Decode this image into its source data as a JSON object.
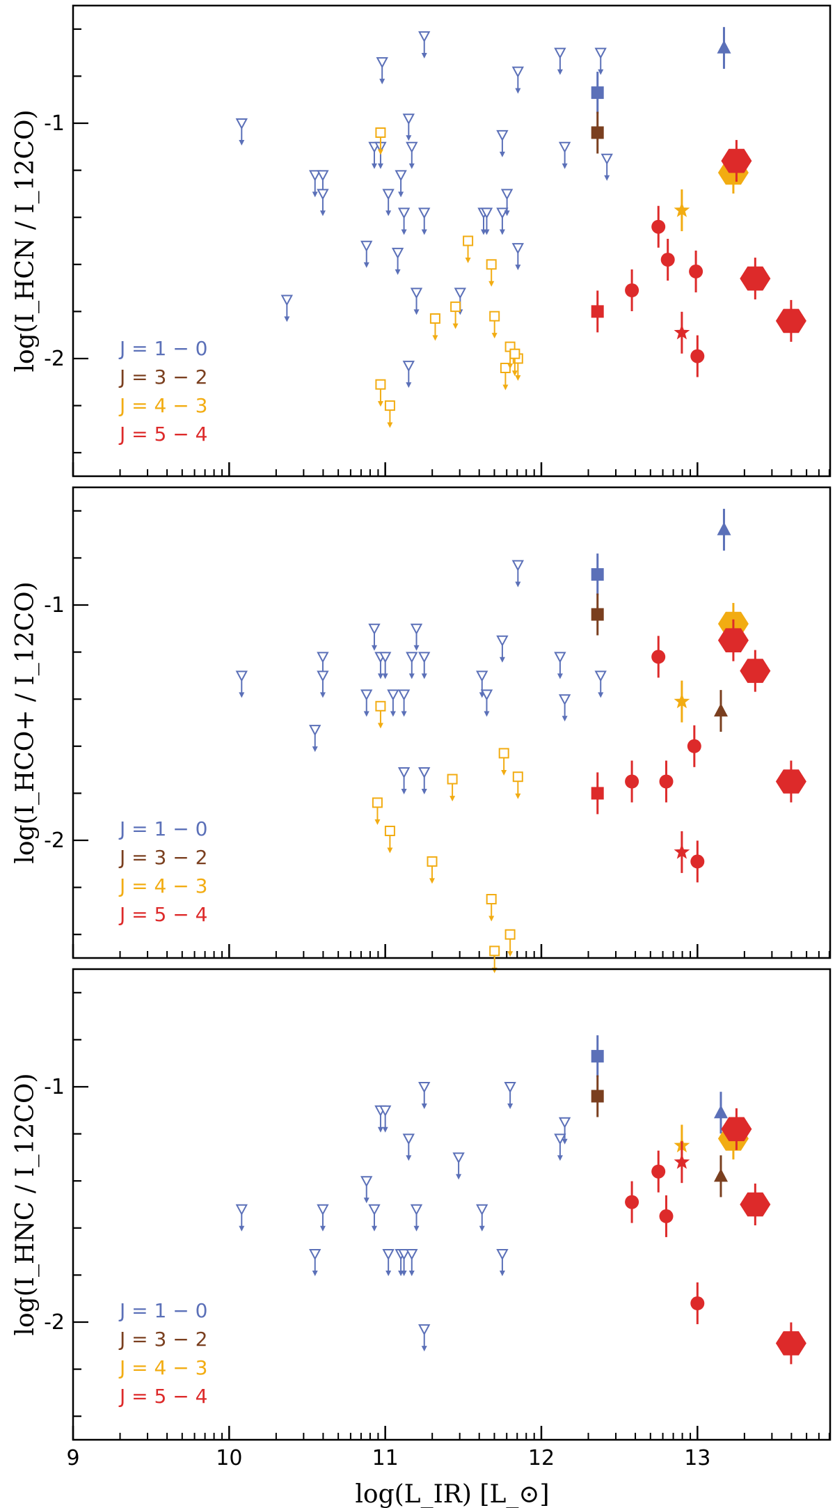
{
  "chart_data": {
    "type": "scatter",
    "xlabel": "log(L_IR) [L_⊙]",
    "xlim": [
      9,
      13.85
    ],
    "xticks": [
      "9",
      "10",
      "11",
      "12",
      "13"
    ],
    "yticks": [
      "-1",
      "-2"
    ],
    "legend": [
      {
        "label": "J = 1 − 0",
        "color": "#5b70b8"
      },
      {
        "label": "J = 3 − 2",
        "color": "#7a3f1f"
      },
      {
        "label": "J = 4 − 3",
        "color": "#f2ac12"
      },
      {
        "label": "J = 5 − 4",
        "color": "#dd2a2a"
      }
    ],
    "panels": [
      {
        "ylabel": "log(I_HCN / I_12CO)",
        "ylim": [
          -2.5,
          -0.5
        ],
        "series": [
          {
            "name": "J=1-0 upper limits",
            "color": "#5b70b8",
            "marker": "tri-down-open",
            "points": [
              [
                10.08,
                -1.0
              ],
              [
                10.37,
                -1.75
              ],
              [
                10.55,
                -1.22
              ],
              [
                10.6,
                -1.22
              ],
              [
                10.6,
                -1.3
              ],
              [
                10.88,
                -1.52
              ],
              [
                10.93,
                -1.1
              ],
              [
                10.97,
                -1.1
              ],
              [
                10.98,
                -0.74
              ],
              [
                11.02,
                -1.3
              ],
              [
                11.08,
                -1.55
              ],
              [
                11.1,
                -1.22
              ],
              [
                11.12,
                -1.38
              ],
              [
                11.15,
                -0.98
              ],
              [
                11.17,
                -1.1
              ],
              [
                11.2,
                -1.72
              ],
              [
                11.25,
                -1.38
              ],
              [
                11.25,
                -0.63
              ],
              [
                11.48,
                -1.72
              ],
              [
                11.63,
                -1.38
              ],
              [
                11.65,
                -1.38
              ],
              [
                11.75,
                -1.38
              ],
              [
                11.78,
                -1.3
              ],
              [
                11.85,
                -0.78
              ],
              [
                11.75,
                -1.05
              ],
              [
                12.12,
                -0.7
              ],
              [
                12.15,
                -1.1
              ],
              [
                12.38,
                -0.7
              ],
              [
                12.42,
                -1.15
              ],
              [
                11.85,
                -1.53
              ],
              [
                11.15,
                -2.03
              ]
            ]
          },
          {
            "name": "J=1-0 detections",
            "color": "#5b70b8",
            "marker": "square",
            "points": [
              [
                12.36,
                -0.87
              ]
            ]
          },
          {
            "name": "J=1-0 high-z",
            "color": "#5b70b8",
            "marker": "triangle-up",
            "points": [
              [
                13.17,
                -0.68
              ]
            ]
          },
          {
            "name": "J=3-2",
            "color": "#7a3f1f",
            "marker": "square",
            "points": [
              [
                12.36,
                -1.04
              ]
            ]
          },
          {
            "name": "J=4-3 upper limits",
            "color": "#f2ac12",
            "marker": "square-open",
            "points": [
              [
                10.97,
                -1.04
              ],
              [
                10.97,
                -2.11
              ],
              [
                11.03,
                -2.2
              ],
              [
                11.32,
                -1.83
              ],
              [
                11.45,
                -1.78
              ],
              [
                11.53,
                -1.5
              ],
              [
                11.68,
                -1.6
              ],
              [
                11.7,
                -1.82
              ],
              [
                11.77,
                -2.04
              ],
              [
                11.8,
                -1.95
              ],
              [
                11.85,
                -2.0
              ],
              [
                11.83,
                -1.98
              ]
            ]
          },
          {
            "name": "J=4-3 star",
            "color": "#f2ac12",
            "marker": "star",
            "points": [
              [
                12.9,
                -1.37
              ]
            ]
          },
          {
            "name": "J=4-3 hexagon",
            "color": "#f2ac12",
            "marker": "hexagon",
            "points": [
              [
                13.23,
                -1.21
              ]
            ]
          },
          {
            "name": "J=5-4 circles",
            "color": "#dd2a2a",
            "marker": "circle",
            "points": [
              [
                12.58,
                -1.71
              ],
              [
                12.75,
                -1.44
              ],
              [
                12.81,
                -1.58
              ],
              [
                12.99,
                -1.63
              ],
              [
                13.0,
                -1.99
              ]
            ]
          },
          {
            "name": "J=5-4 square",
            "color": "#dd2a2a",
            "marker": "square",
            "points": [
              [
                12.36,
                -1.8
              ]
            ]
          },
          {
            "name": "J=5-4 star",
            "color": "#dd2a2a",
            "marker": "star",
            "points": [
              [
                12.9,
                -1.89
              ]
            ]
          },
          {
            "name": "J=5-4 hexagons",
            "color": "#dd2a2a",
            "marker": "hexagon",
            "points": [
              [
                13.25,
                -1.16
              ],
              [
                13.37,
                -1.66
              ],
              [
                13.6,
                -1.84
              ]
            ]
          }
        ]
      },
      {
        "ylabel": "log(I_HCO+ / I_12CO)",
        "ylim": [
          -2.5,
          -0.5
        ],
        "series": [
          {
            "name": "J=1-0 upper limits",
            "color": "#5b70b8",
            "marker": "tri-down-open",
            "points": [
              [
                10.08,
                -1.3
              ],
              [
                10.55,
                -1.53
              ],
              [
                10.6,
                -1.22
              ],
              [
                10.6,
                -1.3
              ],
              [
                10.88,
                -1.38
              ],
              [
                10.93,
                -1.1
              ],
              [
                10.97,
                -1.22
              ],
              [
                11.0,
                -1.22
              ],
              [
                11.05,
                -1.38
              ],
              [
                11.12,
                -1.38
              ],
              [
                11.17,
                -1.22
              ],
              [
                11.2,
                -1.1
              ],
              [
                11.25,
                -1.22
              ],
              [
                11.12,
                -1.71
              ],
              [
                11.25,
                -1.71
              ],
              [
                11.62,
                -1.3
              ],
              [
                11.65,
                -1.38
              ],
              [
                11.75,
                -1.15
              ],
              [
                11.85,
                -0.83
              ],
              [
                12.12,
                -1.22
              ],
              [
                12.15,
                -1.4
              ],
              [
                12.38,
                -1.3
              ]
            ]
          },
          {
            "name": "J=1-0 detections",
            "color": "#5b70b8",
            "marker": "square",
            "points": [
              [
                12.36,
                -0.87
              ]
            ]
          },
          {
            "name": "J=1-0 high-z",
            "color": "#5b70b8",
            "marker": "triangle-up",
            "points": [
              [
                13.17,
                -0.68
              ]
            ]
          },
          {
            "name": "J=3-2",
            "color": "#7a3f1f",
            "marker": "triangle-up",
            "points": [
              [
                13.15,
                -1.45
              ]
            ]
          },
          {
            "name": "J=3-2 square",
            "color": "#7a3f1f",
            "marker": "square",
            "points": [
              [
                12.36,
                -1.04
              ]
            ]
          },
          {
            "name": "J=4-3 upper limits",
            "color": "#f2ac12",
            "marker": "square-open",
            "points": [
              [
                10.97,
                -1.43
              ],
              [
                10.95,
                -1.84
              ],
              [
                11.03,
                -1.96
              ],
              [
                11.3,
                -2.09
              ],
              [
                11.43,
                -1.74
              ],
              [
                11.68,
                -2.25
              ],
              [
                11.76,
                -1.63
              ],
              [
                11.85,
                -1.73
              ],
              [
                11.7,
                -2.47
              ],
              [
                11.8,
                -2.4
              ]
            ]
          },
          {
            "name": "J=4-3 star",
            "color": "#f2ac12",
            "marker": "star",
            "points": [
              [
                12.9,
                -1.41
              ]
            ]
          },
          {
            "name": "J=4-3 hexagon",
            "color": "#f2ac12",
            "marker": "hexagon",
            "points": [
              [
                13.23,
                -1.08
              ]
            ]
          },
          {
            "name": "J=5-4 circles",
            "color": "#dd2a2a",
            "marker": "circle",
            "points": [
              [
                12.58,
                -1.75
              ],
              [
                12.75,
                -1.22
              ],
              [
                12.8,
                -1.75
              ],
              [
                12.98,
                -1.6
              ],
              [
                13.0,
                -2.09
              ]
            ]
          },
          {
            "name": "J=5-4 square",
            "color": "#dd2a2a",
            "marker": "square",
            "points": [
              [
                12.36,
                -1.8
              ]
            ]
          },
          {
            "name": "J=5-4 star",
            "color": "#dd2a2a",
            "marker": "star",
            "points": [
              [
                12.9,
                -2.05
              ]
            ]
          },
          {
            "name": "J=5-4 hexagons",
            "color": "#dd2a2a",
            "marker": "hexagon",
            "points": [
              [
                13.23,
                -1.15
              ],
              [
                13.37,
                -1.28
              ],
              [
                13.6,
                -1.75
              ]
            ]
          }
        ]
      },
      {
        "ylabel": "log(I_HNC / I_12CO)",
        "ylim": [
          -2.5,
          -0.5
        ],
        "series": [
          {
            "name": "J=1-0 upper limits",
            "color": "#5b70b8",
            "marker": "tri-down-open",
            "points": [
              [
                10.08,
                -1.52
              ],
              [
                10.55,
                -1.71
              ],
              [
                10.6,
                -1.52
              ],
              [
                10.88,
                -1.4
              ],
              [
                10.93,
                -1.52
              ],
              [
                10.97,
                -1.1
              ],
              [
                11.0,
                -1.1
              ],
              [
                11.02,
                -1.71
              ],
              [
                11.1,
                -1.71
              ],
              [
                11.12,
                -1.71
              ],
              [
                11.15,
                -1.22
              ],
              [
                11.17,
                -1.71
              ],
              [
                11.2,
                -1.52
              ],
              [
                11.25,
                -1.0
              ],
              [
                11.25,
                -2.03
              ],
              [
                11.47,
                -1.3
              ],
              [
                11.62,
                -1.52
              ],
              [
                11.75,
                -1.71
              ],
              [
                11.8,
                -1.0
              ],
              [
                12.12,
                -1.22
              ],
              [
                12.15,
                -1.15
              ]
            ]
          },
          {
            "name": "J=1-0 detections",
            "color": "#5b70b8",
            "marker": "square",
            "points": [
              [
                12.36,
                -0.87
              ]
            ]
          },
          {
            "name": "J=1-0 high-z",
            "color": "#5b70b8",
            "marker": "triangle-up",
            "points": [
              [
                13.15,
                -1.11
              ]
            ]
          },
          {
            "name": "J=3-2",
            "color": "#7a3f1f",
            "marker": "triangle-up",
            "points": [
              [
                13.15,
                -1.38
              ]
            ]
          },
          {
            "name": "J=3-2 square",
            "color": "#7a3f1f",
            "marker": "square",
            "points": [
              [
                12.36,
                -1.04
              ]
            ]
          },
          {
            "name": "J=4-3 star",
            "color": "#f2ac12",
            "marker": "star",
            "points": [
              [
                12.9,
                -1.25
              ]
            ]
          },
          {
            "name": "J=4-3 hexagon",
            "color": "#f2ac12",
            "marker": "hexagon",
            "points": [
              [
                13.23,
                -1.22
              ]
            ]
          },
          {
            "name": "J=5-4 circles",
            "color": "#dd2a2a",
            "marker": "circle",
            "points": [
              [
                12.58,
                -1.49
              ],
              [
                12.75,
                -1.36
              ],
              [
                12.8,
                -1.55
              ],
              [
                13.0,
                -1.92
              ]
            ]
          },
          {
            "name": "J=5-4 star",
            "color": "#dd2a2a",
            "marker": "star",
            "points": [
              [
                12.9,
                -1.32
              ]
            ]
          },
          {
            "name": "J=5-4 hexagons",
            "color": "#dd2a2a",
            "marker": "hexagon",
            "points": [
              [
                13.25,
                -1.18
              ],
              [
                13.37,
                -1.5
              ],
              [
                13.6,
                -2.09
              ]
            ]
          }
        ]
      }
    ]
  }
}
